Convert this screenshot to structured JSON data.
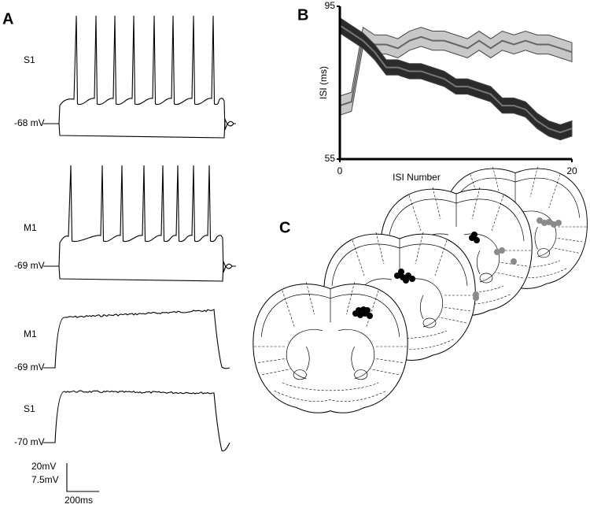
{
  "panels": {
    "a": "A",
    "b": "B",
    "c": "C"
  },
  "traces": [
    {
      "region": "S1",
      "potential": "-68 mV"
    },
    {
      "region": "M1",
      "potential": "-69 mV"
    },
    {
      "region": "M1",
      "potential": "-69 mV"
    },
    {
      "region": "S1",
      "potential": "-70 mV"
    }
  ],
  "scale_bar": {
    "voltage": [
      "20mV",
      "7.5mV"
    ],
    "time": "200ms"
  },
  "chart_data": {
    "type": "line",
    "x_label": "ISI Number",
    "y_label": "ISI (ms)",
    "x": [
      0,
      1,
      2,
      3,
      4,
      5,
      6,
      7,
      8,
      9,
      10,
      11,
      12,
      13,
      14,
      15,
      16,
      17,
      18,
      19,
      20
    ],
    "series": [
      {
        "color": "#c8c8c8",
        "line_color": "#666666",
        "values": [
          69,
          70,
          87,
          85,
          85,
          84,
          86,
          87,
          86,
          86,
          85,
          84,
          86,
          84,
          86,
          85,
          86,
          85,
          85,
          84,
          83
        ],
        "errors": [
          2.5,
          2.5,
          2.5,
          2.5,
          2.5,
          2.5,
          2.5,
          2.5,
          2.5,
          2.5,
          2.5,
          2.5,
          2.5,
          2.5,
          2.5,
          2.5,
          2.5,
          2.5,
          2.5,
          2.5,
          2.5
        ]
      },
      {
        "color": "#2b2b2b",
        "line_color": "#777777",
        "values": [
          90,
          88,
          86,
          83,
          79,
          79,
          78,
          78,
          77,
          76,
          74,
          74,
          73,
          72,
          69,
          69,
          68,
          65,
          63,
          62,
          63
        ],
        "errors": [
          2,
          2,
          2,
          2,
          2,
          2,
          2,
          2,
          2,
          2,
          2,
          2,
          2,
          2,
          2,
          2,
          2,
          2,
          2,
          2,
          2
        ]
      }
    ],
    "xlim": [
      0,
      20
    ],
    "xticks": [
      0,
      20
    ],
    "ylim": [
      55,
      95
    ],
    "yticks": [
      55,
      95
    ]
  }
}
